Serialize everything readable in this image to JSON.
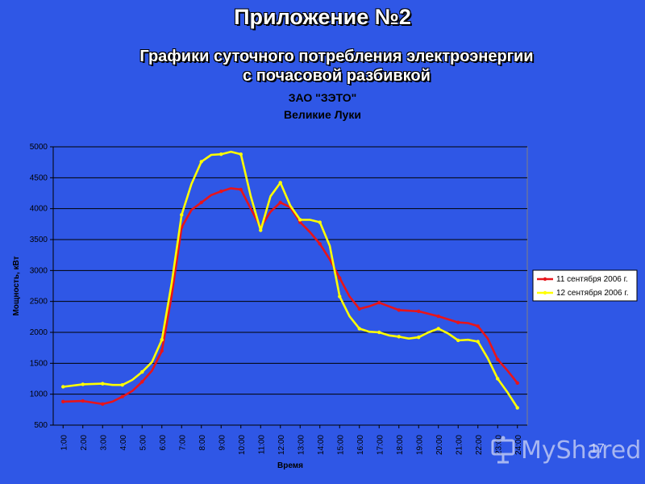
{
  "slide": {
    "title": "Приложение №2",
    "subtitle_line1": "Графики суточного потребления электроэнергии",
    "subtitle_line2": "с почасовой разбивкой",
    "page_number": "17",
    "watermark": "MyShared"
  },
  "colors": {
    "background": "#2f57e6",
    "plot_area": "#2f57e6",
    "series_1": "#e8141a",
    "series_2": "#ffff00"
  },
  "chart_data": {
    "type": "line",
    "title": "ЗАО \"ЗЭТО\"",
    "subtitle": "Великие Луки",
    "xlabel": "Время",
    "ylabel": "Мощность, кВт",
    "categories": [
      "1:00",
      "2:00",
      "3:00",
      "4:00",
      "5:00",
      "6:00",
      "7:00",
      "8:00",
      "9:00",
      "10:00",
      "11:00",
      "12:00",
      "13:00",
      "14:00",
      "15:00",
      "16:00",
      "17:00",
      "18:00",
      "19:00",
      "20:00",
      "21:00",
      "22:00",
      "23:00",
      "24:00"
    ],
    "ylim": [
      500,
      5000
    ],
    "yticks": [
      500,
      1000,
      1500,
      2000,
      2500,
      3000,
      3500,
      4000,
      4500,
      5000
    ],
    "grid": "horizontal",
    "legend_position": "right",
    "series": [
      {
        "name": "11 сентября 2006 г.",
        "x": [
          1,
          2,
          3,
          3.5,
          4,
          4.5,
          5,
          5.5,
          6,
          6.5,
          7,
          7.5,
          8,
          8.5,
          9,
          9.5,
          10,
          10.5,
          11,
          11.5,
          12,
          12.5,
          13,
          13.5,
          14,
          14.5,
          15,
          15.5,
          16,
          16.5,
          17,
          17.5,
          18,
          18.5,
          19,
          19.5,
          20,
          20.5,
          21,
          21.5,
          22,
          22.5,
          23,
          23.5,
          24
        ],
        "values": [
          880,
          890,
          840,
          880,
          960,
          1050,
          1200,
          1380,
          1700,
          2600,
          3700,
          3980,
          4100,
          4220,
          4280,
          4330,
          4310,
          4000,
          3700,
          3950,
          4100,
          4020,
          3780,
          3620,
          3430,
          3180,
          2880,
          2580,
          2380,
          2420,
          2480,
          2420,
          2360,
          2350,
          2340,
          2300,
          2260,
          2210,
          2160,
          2150,
          2100,
          1900,
          1560,
          1380,
          1180
        ]
      },
      {
        "name": "12 сентября 2006 г.",
        "x": [
          1,
          2,
          3,
          3.5,
          4,
          4.5,
          5,
          5.5,
          6,
          6.5,
          7,
          7.5,
          8,
          8.5,
          9,
          9.5,
          10,
          10.5,
          11,
          11.5,
          12,
          12.5,
          13,
          13.5,
          14,
          14.5,
          15,
          15.5,
          16,
          16.5,
          17,
          17.5,
          18,
          18.5,
          19,
          19.5,
          20,
          20.5,
          21,
          21.5,
          22,
          22.5,
          23,
          23.5,
          24
        ],
        "values": [
          1120,
          1160,
          1170,
          1150,
          1150,
          1230,
          1360,
          1520,
          1880,
          2800,
          3900,
          4400,
          4760,
          4870,
          4880,
          4920,
          4880,
          4200,
          3650,
          4200,
          4420,
          4050,
          3820,
          3820,
          3780,
          3400,
          2580,
          2260,
          2060,
          2010,
          2000,
          1950,
          1930,
          1900,
          1920,
          2000,
          2060,
          1980,
          1870,
          1880,
          1850,
          1580,
          1250,
          1030,
          780
        ]
      }
    ]
  }
}
